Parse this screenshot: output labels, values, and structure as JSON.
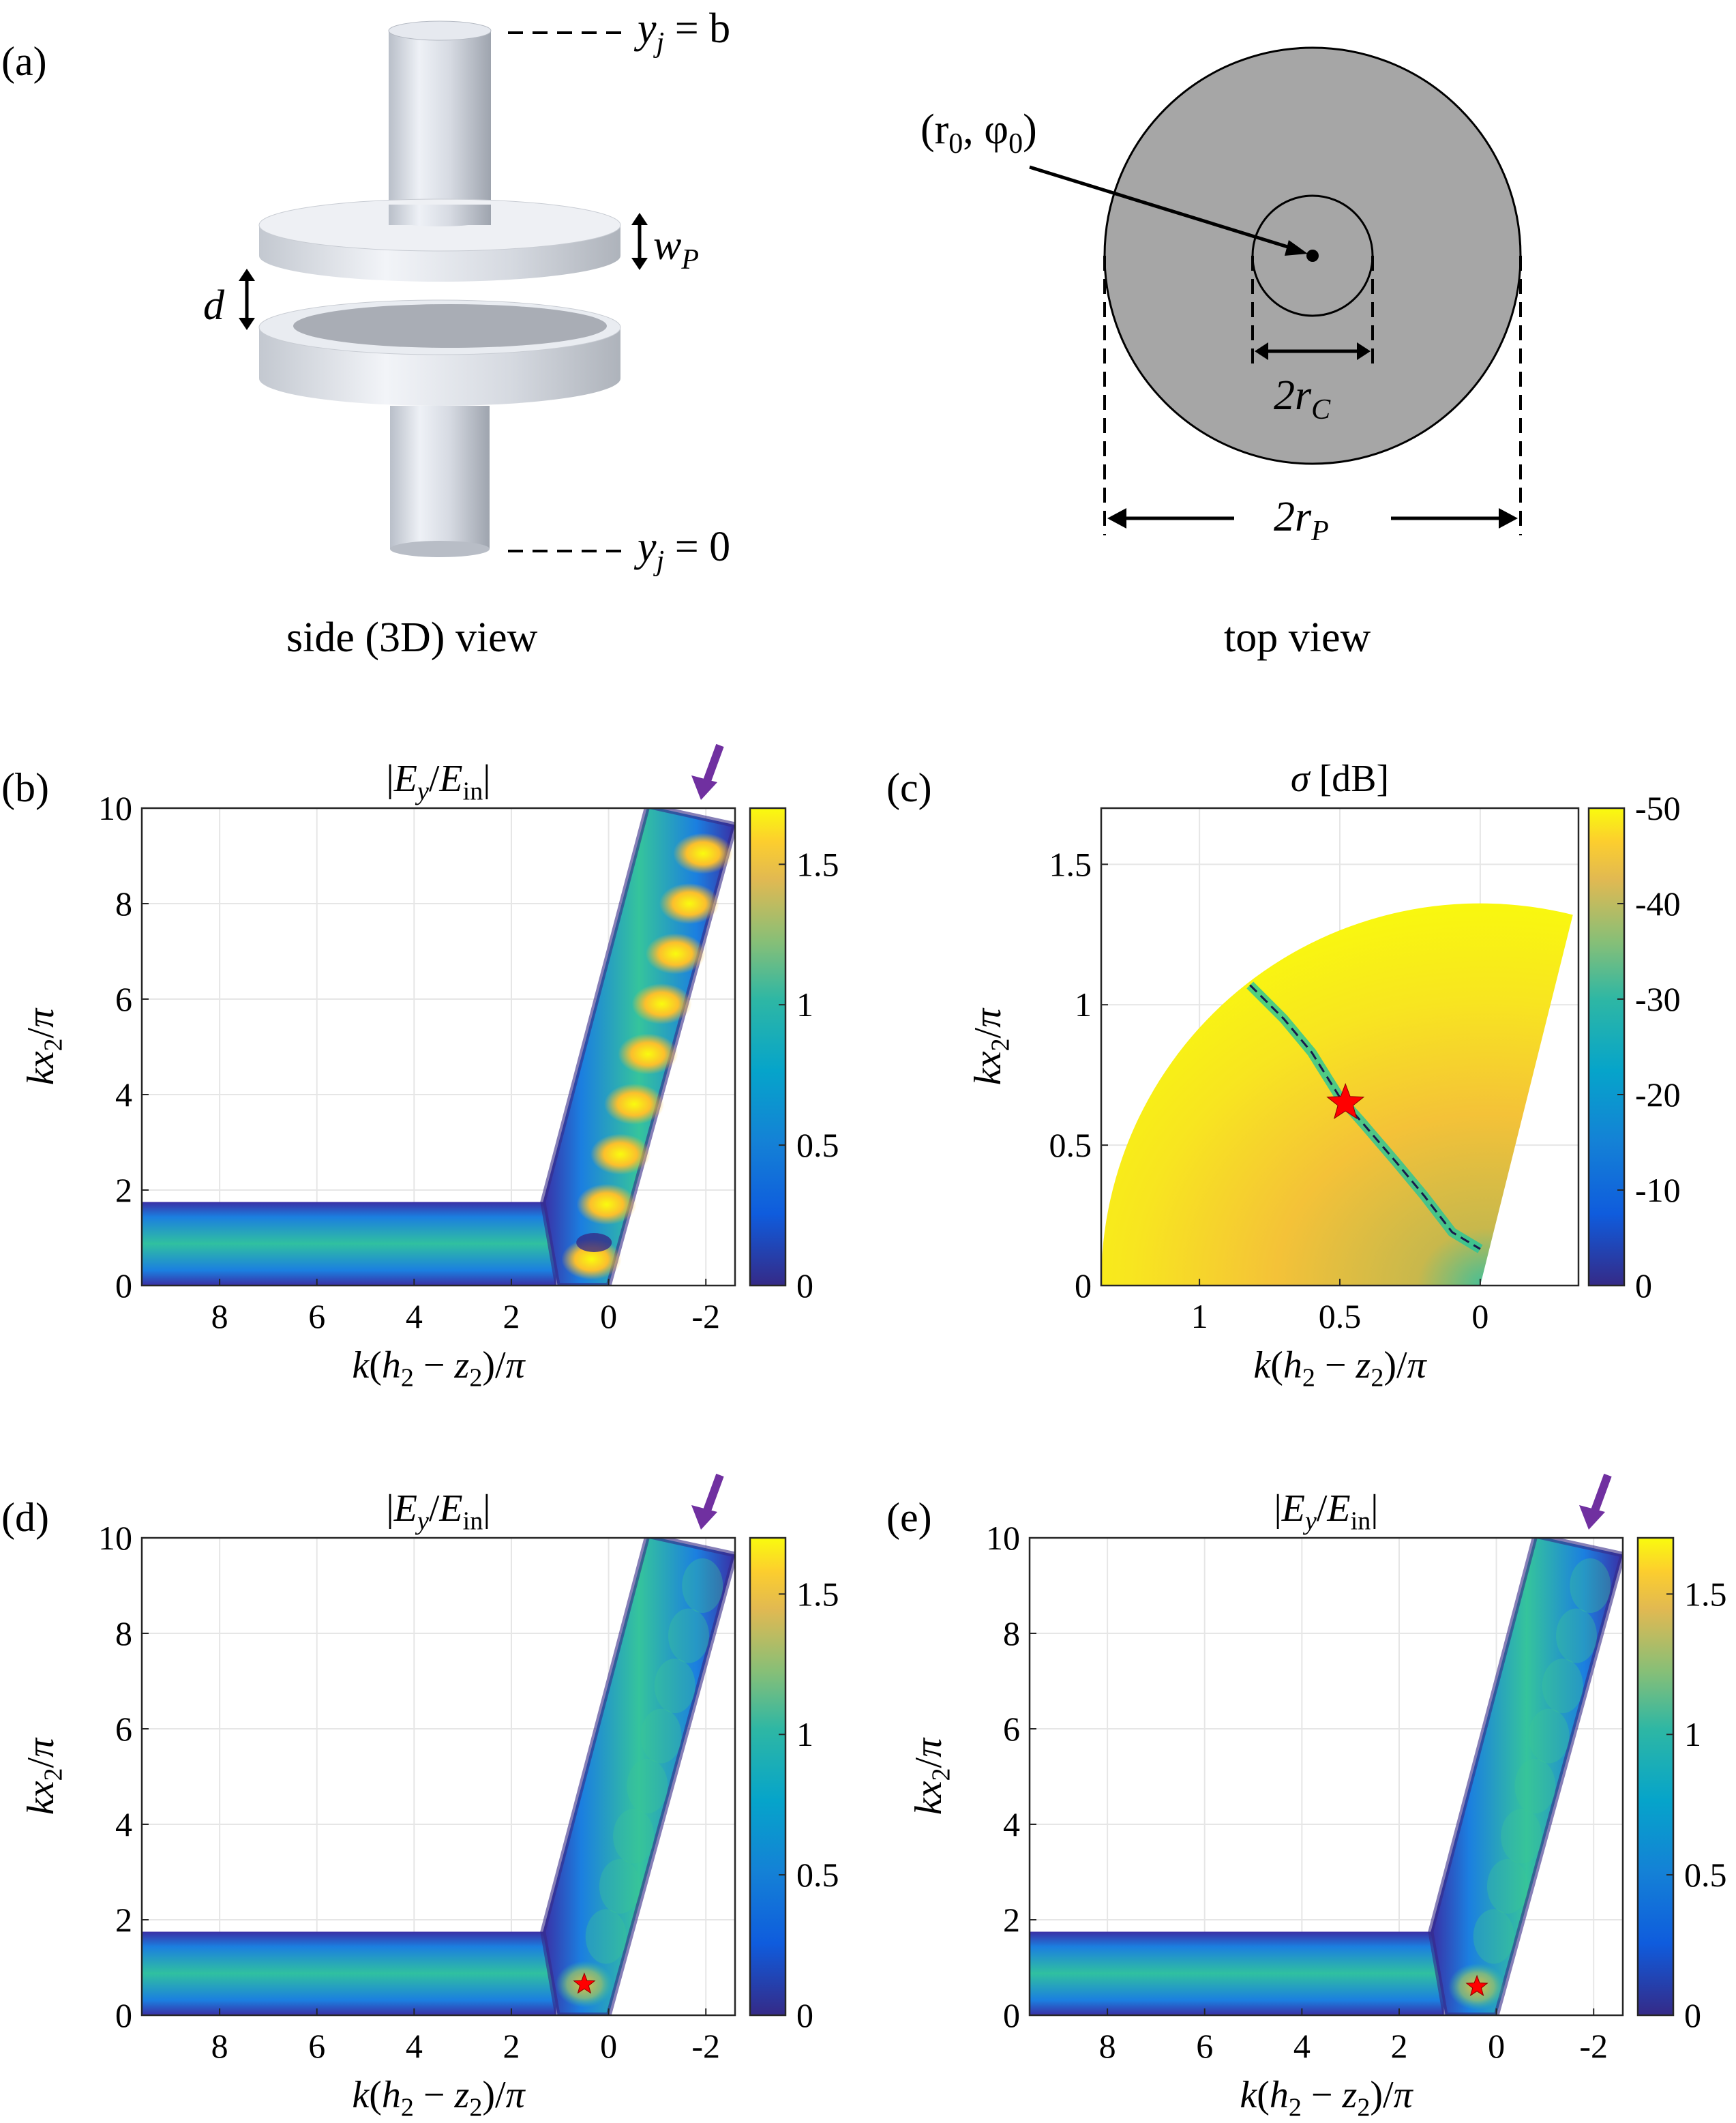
{
  "panel_a": {
    "label": "(a)",
    "side_top_tag": "y",
    "side_top_sub": "j",
    "side_top_eq": " = b",
    "side_bot_tag": "y",
    "side_bot_sub": "j",
    "side_bot_eq": " = 0",
    "wp_label": "w",
    "wp_sub": "P",
    "d_label": "d",
    "r0_label": "(r",
    "r0_sub": "0",
    "r0_mid": ", φ",
    "r0_sub2": "0",
    "r0_end": ")",
    "rc_label": "2r",
    "rc_sub": "C",
    "rp_label": "2r",
    "rp_sub": "P",
    "side_caption": "side (3D) view",
    "top_caption": "top view"
  },
  "chart_data": [
    {
      "id": "b",
      "label": "(b)",
      "type": "heatmap",
      "title": "|E_y/E_in|",
      "xlabel": "k(h_2 − z_2)/π",
      "ylabel": "kx_2/π",
      "xticks": [
        "8",
        "6",
        "4",
        "2",
        "0",
        "-2"
      ],
      "yticks": [
        "0",
        "2",
        "4",
        "6",
        "8",
        "10"
      ],
      "xlim": [
        9.6,
        -2.6
      ],
      "ylim": [
        0,
        10
      ],
      "colorbar": {
        "ticks": [
          "0",
          "0.5",
          "1",
          "1.5"
        ],
        "range": [
          0,
          1.7
        ]
      },
      "peaks_y": [
        0.55,
        1.7,
        2.75,
        3.8,
        4.85,
        5.9,
        6.95,
        8.0,
        9.05
      ],
      "marker": null,
      "arrow": true
    },
    {
      "id": "c",
      "label": "(c)",
      "type": "heatmap",
      "title": "σ [dB]",
      "xlabel": "k(h_2 − z_2)/π",
      "ylabel": "kx_2/π",
      "xticks": [
        "1",
        "0.5",
        "0"
      ],
      "yticks": [
        "0",
        "0.5",
        "1",
        "1.5"
      ],
      "xlim": [
        1.35,
        -0.35
      ],
      "ylim": [
        0,
        1.7
      ],
      "colorbar": {
        "ticks": [
          "0",
          "-10",
          "-20",
          "-30",
          "-40",
          "-50"
        ],
        "range": [
          0,
          -50
        ]
      },
      "curve": {
        "x": [
          0.82,
          0.7,
          0.6,
          0.5,
          0.42,
          0.3,
          0.2,
          0.1,
          0.0
        ],
        "y": [
          1.07,
          0.95,
          0.83,
          0.67,
          0.58,
          0.44,
          0.32,
          0.19,
          0.13
        ]
      },
      "marker": {
        "x": 0.48,
        "y": 0.65
      }
    },
    {
      "id": "d",
      "label": "(d)",
      "type": "heatmap",
      "title": "|E_y/E_in|",
      "xlabel": "k(h_2 − z_2)/π",
      "ylabel": "kx_2/π",
      "xticks": [
        "8",
        "6",
        "4",
        "2",
        "0",
        "-2"
      ],
      "yticks": [
        "0",
        "2",
        "4",
        "6",
        "8",
        "10"
      ],
      "xlim": [
        9.6,
        -2.6
      ],
      "ylim": [
        0,
        10
      ],
      "colorbar": {
        "ticks": [
          "0",
          "0.5",
          "1",
          "1.5"
        ],
        "range": [
          0,
          1.7
        ]
      },
      "marker": {
        "x": 0.5,
        "y": 0.65
      },
      "arrow": true
    },
    {
      "id": "e",
      "label": "(e)",
      "type": "heatmap",
      "title": "|E_y/E_in|",
      "xlabel": "k(h_2 − z_2)/π",
      "ylabel": "kx_2/π",
      "xticks": [
        "8",
        "6",
        "4",
        "2",
        "0",
        "-2"
      ],
      "yticks": [
        "0",
        "2",
        "4",
        "6",
        "8",
        "10"
      ],
      "xlim": [
        9.6,
        -2.6
      ],
      "ylim": [
        0,
        10
      ],
      "colorbar": {
        "ticks": [
          "0",
          "0.5",
          "1",
          "1.5"
        ],
        "range": [
          0,
          1.7
        ]
      },
      "marker": {
        "x": 0.4,
        "y": 0.6
      },
      "arrow": true
    }
  ],
  "colors": {
    "parula_low": "#352a87",
    "parula_mid": "#21b5a8",
    "parula_high": "#f9fb0e",
    "star": "#ff0000",
    "arrow": "#7030a0",
    "disk_gray": "#a6a6a6"
  }
}
